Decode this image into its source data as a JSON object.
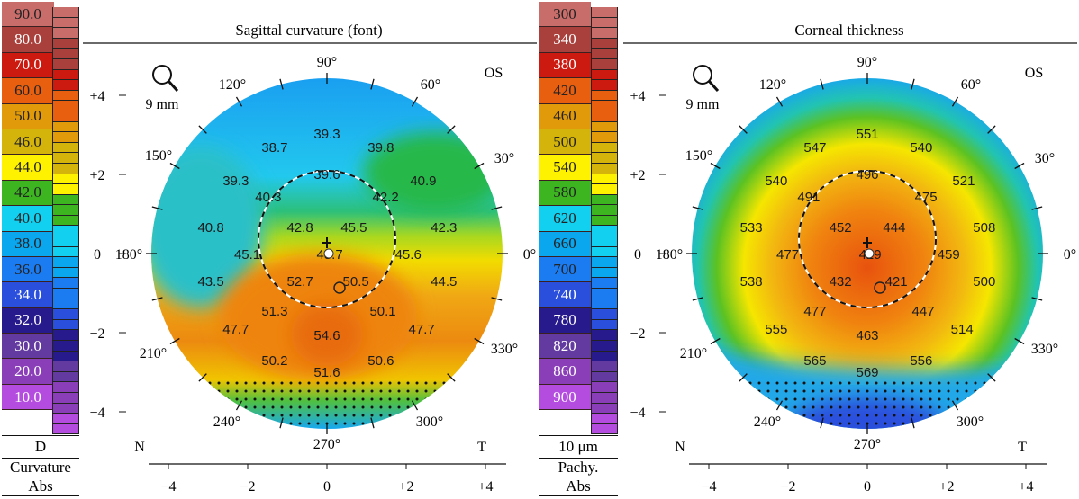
{
  "legends": [
    {
      "labels": [
        "90.0",
        "80.0",
        "70.0",
        "60.0",
        "50.0",
        "46.0",
        "44.0",
        "42.0",
        "40.0",
        "38.0",
        "36.0",
        "34.0",
        "32.0",
        "30.0",
        "20.0",
        "10.0"
      ],
      "unit": "D",
      "kind": "Curvature",
      "mode": "Abs"
    },
    {
      "labels": [
        "300",
        "340",
        "380",
        "420",
        "460",
        "500",
        "540",
        "580",
        "620",
        "660",
        "700",
        "740",
        "780",
        "820",
        "860",
        "900"
      ],
      "unit": "10 μm",
      "kind": "Pachy.",
      "mode": "Abs"
    }
  ],
  "legend_colors": [
    "#c96d6a",
    "#a9403b",
    "#cc1a10",
    "#e8600f",
    "#e09a0a",
    "#d4b40a",
    "#fff200",
    "#3cb521",
    "#12d0f0",
    "#0aa6ee",
    "#1b7bf0",
    "#2a4fdd",
    "#271a8c",
    "#633a9f",
    "#8a3fb8",
    "#b44ddf"
  ],
  "legend_text_light": [
    false,
    true,
    true,
    false,
    false,
    false,
    false,
    false,
    false,
    false,
    false,
    true,
    true,
    true,
    true,
    true
  ],
  "chart_data": [
    {
      "type": "heatmap",
      "title": "Sagittal curvature (font)",
      "eye": "OS",
      "zone": "9 mm",
      "xlabel_left": "N",
      "xlabel_right": "T",
      "xticks": [
        "−4",
        "−2",
        "0",
        "+2",
        "+4"
      ],
      "yticks": [
        "+4",
        "+2",
        "0",
        "−2",
        "−4"
      ],
      "xlim": [
        -4.5,
        4.5
      ],
      "ylim": [
        -4.5,
        4.5
      ],
      "angles": [
        "90°",
        "60°",
        "120°",
        "30°",
        "150°",
        "0°",
        "180°",
        "210°",
        "330°",
        "240°",
        "300°",
        "270°"
      ],
      "unit": "D",
      "points_mm": [
        [
          0,
          3.05
        ],
        [
          -1.32,
          2.7
        ],
        [
          1.36,
          2.7
        ],
        [
          -2.3,
          1.86
        ],
        [
          0,
          2.02
        ],
        [
          2.43,
          1.86
        ],
        [
          -1.48,
          1.45
        ],
        [
          1.48,
          1.45
        ],
        [
          -2.93,
          0.68
        ],
        [
          -0.68,
          0.68
        ],
        [
          0.68,
          0.68
        ],
        [
          2.95,
          0.68
        ],
        [
          -2.01,
          0
        ],
        [
          0.07,
          0
        ],
        [
          2.05,
          0
        ],
        [
          -2.93,
          -0.68
        ],
        [
          -0.68,
          -0.68
        ],
        [
          0.73,
          -0.68
        ],
        [
          2.95,
          -0.68
        ],
        [
          -1.32,
          -1.43
        ],
        [
          1.41,
          -1.43
        ],
        [
          -2.3,
          -1.89
        ],
        [
          0,
          -2.05
        ],
        [
          2.39,
          -1.89
        ],
        [
          -1.32,
          -2.68
        ],
        [
          1.36,
          -2.68
        ],
        [
          0,
          -2.98
        ]
      ],
      "values": [
        "39.3",
        "38.7",
        "39.8",
        "39.3",
        "39.6",
        "40.9",
        "40.3",
        "42.2",
        "40.8",
        "42.8",
        "45.5",
        "42.3",
        "45.1",
        "48.7",
        "45.6",
        "43.5",
        "52.7",
        "50.5",
        "44.5",
        "51.3",
        "50.1",
        "47.7",
        "54.6",
        "47.7",
        "50.2",
        "50.6",
        "51.6"
      ]
    },
    {
      "type": "heatmap",
      "title": "Corneal thickness",
      "eye": "OS",
      "zone": "9 mm",
      "xlabel_left": "N",
      "xlabel_right": "T",
      "xticks": [
        "−4",
        "−2",
        "0",
        "+2",
        "+4"
      ],
      "yticks": [
        "+4",
        "+2",
        "0",
        "−2",
        "−4"
      ],
      "xlim": [
        -4.5,
        4.5
      ],
      "ylim": [
        -4.5,
        4.5
      ],
      "angles": [
        "90°",
        "60°",
        "120°",
        "30°",
        "150°",
        "0°",
        "180°",
        "210°",
        "330°",
        "240°",
        "300°",
        "270°"
      ],
      "unit": "μm",
      "points_mm": [
        [
          0,
          3.05
        ],
        [
          -1.32,
          2.7
        ],
        [
          1.36,
          2.7
        ],
        [
          -2.3,
          1.86
        ],
        [
          0,
          2.02
        ],
        [
          2.43,
          1.86
        ],
        [
          -1.48,
          1.45
        ],
        [
          1.48,
          1.45
        ],
        [
          -2.93,
          0.68
        ],
        [
          -0.68,
          0.68
        ],
        [
          0.68,
          0.68
        ],
        [
          2.95,
          0.68
        ],
        [
          -2.01,
          0
        ],
        [
          0.07,
          0
        ],
        [
          2.05,
          0
        ],
        [
          -2.93,
          -0.68
        ],
        [
          -0.68,
          -0.68
        ],
        [
          0.73,
          -0.68
        ],
        [
          2.95,
          -0.68
        ],
        [
          -1.32,
          -1.43
        ],
        [
          1.41,
          -1.43
        ],
        [
          -2.3,
          -1.89
        ],
        [
          0,
          -2.05
        ],
        [
          2.39,
          -1.89
        ],
        [
          -1.32,
          -2.68
        ],
        [
          1.36,
          -2.68
        ],
        [
          0,
          -2.98
        ]
      ],
      "values": [
        "551",
        "547",
        "540",
        "540",
        "496",
        "521",
        "491",
        "475",
        "533",
        "452",
        "444",
        "508",
        "477",
        "429",
        "459",
        "538",
        "432",
        "421",
        "500",
        "477",
        "447",
        "555",
        "463",
        "514",
        "565",
        "556",
        "569"
      ]
    }
  ]
}
